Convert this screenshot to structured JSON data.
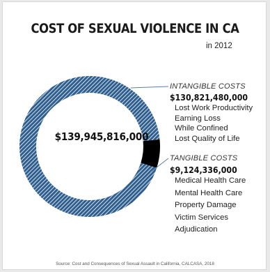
{
  "header": {
    "title": "COST OF SEXUAL VIOLENCE IN CA",
    "subtitle": "in 2012"
  },
  "chart_data": {
    "type": "pie",
    "title": "COST OF SEXUAL VIOLENCE IN CA",
    "subtitle": "in 2012",
    "total_label": "$139,945,816,000",
    "total": 139945816000,
    "slices": [
      {
        "name": "INTANGIBLE COSTS",
        "amount_label": "$130,821,480,000",
        "value": 130821480000,
        "items": [
          "Lost Work Productivity",
          "Earning Loss",
          "While Confined",
          "Lost Quality of Life"
        ]
      },
      {
        "name": "TANGIBLE COSTS",
        "amount_label": "$9,124,336,000",
        "value": 9124336000,
        "items": [
          "Medical Health Care",
          "Mental Health Care",
          "Property Damage",
          "Victim Services",
          "Adjudication"
        ]
      }
    ],
    "colors": {
      "intangible": "#2f5f8f",
      "intangible_hatch": "#ffffff",
      "tangible": "#000000",
      "leader": "#5a7fa6"
    }
  },
  "footer": {
    "source": "Source: Cost and Consequences of Sexual Assault in California, CALCASA, 2018"
  }
}
